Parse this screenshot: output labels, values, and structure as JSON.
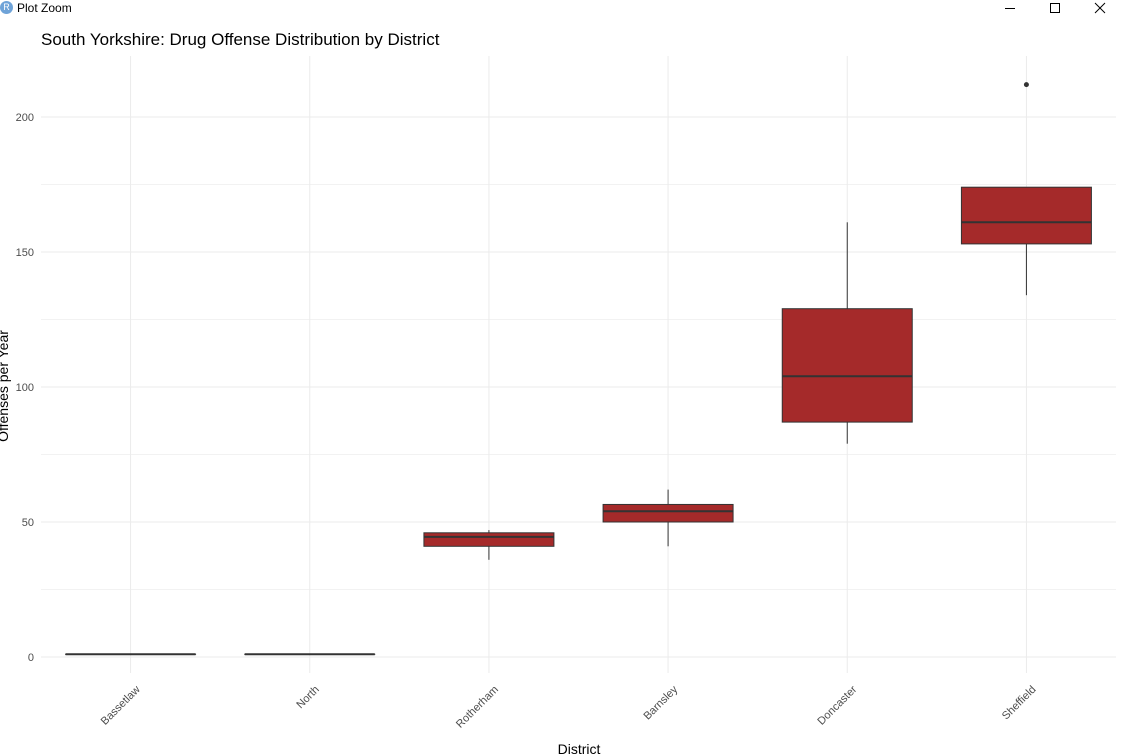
{
  "window": {
    "title": "Plot Zoom",
    "app_icon_letter": "R",
    "icons": [
      "r-app-icon",
      "minimize-icon",
      "maximize-icon",
      "close-icon"
    ]
  },
  "chart_data": {
    "type": "boxplot",
    "title": "South Yorkshire: Drug Offense Distribution by District",
    "xlabel": "District",
    "ylabel": "Offenses per Year",
    "ylim": [
      -8,
      222
    ],
    "yticks": [
      0,
      50,
      100,
      150,
      200
    ],
    "grid": true,
    "fill_color": "#a52a2a",
    "line_color": "#333333",
    "categories": [
      "Bassetlaw",
      "North",
      "Rotherham",
      "Barnsley",
      "Doncaster",
      "Sheffield"
    ],
    "boxes": [
      {
        "category": "Bassetlaw",
        "lower_whisker": 1,
        "q1": 1,
        "median": 1,
        "q3": 1,
        "upper_whisker": 1,
        "outliers": []
      },
      {
        "category": "North",
        "lower_whisker": 1,
        "q1": 1,
        "median": 1,
        "q3": 1,
        "upper_whisker": 1,
        "outliers": []
      },
      {
        "category": "Rotherham",
        "lower_whisker": 36,
        "q1": 41,
        "median": 44.5,
        "q3": 46,
        "upper_whisker": 47,
        "outliers": []
      },
      {
        "category": "Barnsley",
        "lower_whisker": 41,
        "q1": 50,
        "median": 54,
        "q3": 56.5,
        "upper_whisker": 62,
        "outliers": []
      },
      {
        "category": "Doncaster",
        "lower_whisker": 79,
        "q1": 87,
        "median": 104,
        "q3": 129,
        "upper_whisker": 161,
        "outliers": []
      },
      {
        "category": "Sheffield",
        "lower_whisker": 134,
        "q1": 153,
        "median": 161,
        "q3": 174,
        "upper_whisker": 174,
        "outliers": [
          212
        ]
      }
    ]
  }
}
